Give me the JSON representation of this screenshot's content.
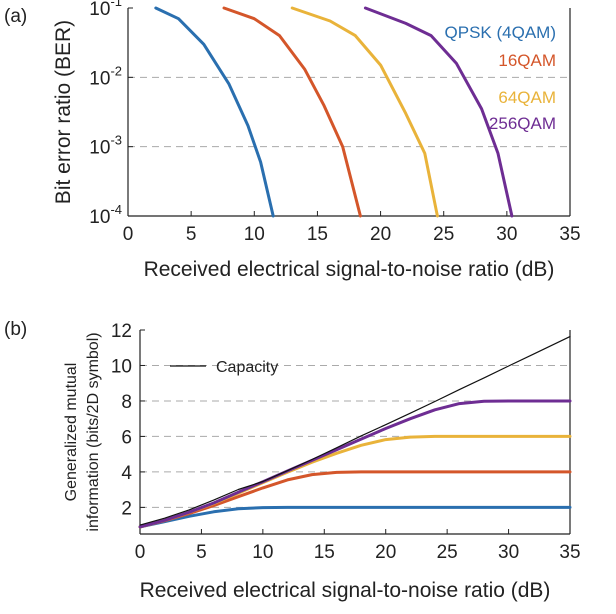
{
  "chart_data": [
    {
      "panel_label": "(a)",
      "type": "line",
      "xlabel": "Received electrical signal-to-noise ratio (dB)",
      "ylabel": "Bit error ratio (BER)",
      "xlim": [
        0,
        35
      ],
      "ylim": [
        0.0001,
        0.1
      ],
      "yscale": "log",
      "xticks": [
        0,
        5,
        10,
        15,
        20,
        25,
        30,
        35
      ],
      "yticks": [
        {
          "base": "10",
          "exp": "-4",
          "value": 0.0001
        },
        {
          "base": "10",
          "exp": "-3",
          "value": 0.001
        },
        {
          "base": "10",
          "exp": "-2",
          "value": 0.01
        },
        {
          "base": "10",
          "exp": "-1",
          "value": 0.1
        }
      ],
      "grid": "horizontal-dashed",
      "series": [
        {
          "name": "QPSK (4QAM)",
          "color": "#2a6faf",
          "x": [
            2.2,
            4,
            6,
            8,
            9.5,
            10.5,
            11.5
          ],
          "y": [
            0.1,
            0.07,
            0.03,
            0.008,
            0.002,
            0.0006,
            0.0001
          ]
        },
        {
          "name": "16QAM",
          "color": "#d4562a",
          "x": [
            7.6,
            10,
            12,
            14,
            15.5,
            17,
            18.4
          ],
          "y": [
            0.1,
            0.07,
            0.04,
            0.013,
            0.004,
            0.001,
            0.0001
          ]
        },
        {
          "name": "64QAM",
          "color": "#e9b33a",
          "x": [
            13,
            16,
            18,
            20,
            22,
            23.5,
            24.5
          ],
          "y": [
            0.1,
            0.065,
            0.04,
            0.015,
            0.003,
            0.0008,
            0.0001
          ]
        },
        {
          "name": "256QAM",
          "color": "#6e2d93",
          "x": [
            18.8,
            22,
            24,
            26,
            28,
            29.3,
            30.4
          ],
          "y": [
            0.1,
            0.06,
            0.04,
            0.016,
            0.0035,
            0.0008,
            0.0001
          ]
        }
      ]
    },
    {
      "panel_label": "(b)",
      "type": "line",
      "xlabel": "Received electrical signal-to-noise ratio (dB)",
      "ylabel_line1": "Generalized mutual",
      "ylabel_line2": "information (bits/2D symbol)",
      "xlim": [
        0,
        35
      ],
      "ylim": [
        0.5,
        12
      ],
      "xticks": [
        0,
        5,
        10,
        15,
        20,
        25,
        30,
        35
      ],
      "yticks": [
        2,
        4,
        6,
        8,
        10,
        12
      ],
      "grid": "horizontal-dashed",
      "legend": {
        "position": "top-left",
        "entry": "Capacity"
      },
      "series": [
        {
          "name": "Capacity",
          "color": "#111111",
          "x": [
            0,
            2,
            4,
            6,
            8,
            10,
            12,
            14,
            16,
            18,
            20,
            22,
            24,
            26,
            28,
            30,
            32,
            35
          ],
          "y": [
            1,
            1.39,
            1.86,
            2.41,
            3.01,
            3.46,
            4.07,
            4.7,
            5.36,
            6.03,
            6.66,
            7.31,
            7.97,
            8.64,
            9.3,
            9.97,
            10.63,
            11.63
          ]
        },
        {
          "name": "QPSK (4QAM)",
          "color": "#2a6faf",
          "x": [
            0,
            2,
            4,
            6,
            8,
            10,
            12,
            14,
            35
          ],
          "y": [
            0.9,
            1.2,
            1.5,
            1.75,
            1.92,
            1.99,
            2.0,
            2.0,
            2.0
          ]
        },
        {
          "name": "16QAM",
          "color": "#d4562a",
          "x": [
            0,
            2,
            4,
            6,
            8,
            10,
            12,
            14,
            16,
            18,
            20,
            35
          ],
          "y": [
            0.9,
            1.25,
            1.65,
            2.1,
            2.6,
            3.1,
            3.55,
            3.85,
            3.97,
            4.0,
            4.0,
            4.0
          ]
        },
        {
          "name": "64QAM",
          "color": "#e9b33a",
          "x": [
            0,
            2,
            4,
            6,
            8,
            10,
            12,
            14,
            16,
            18,
            20,
            22,
            24,
            26,
            35
          ],
          "y": [
            0.9,
            1.27,
            1.72,
            2.22,
            2.8,
            3.4,
            3.98,
            4.55,
            5.05,
            5.5,
            5.82,
            5.96,
            6.0,
            6.0,
            6.0
          ]
        },
        {
          "name": "256QAM",
          "color": "#6e2d93",
          "x": [
            0,
            2,
            4,
            6,
            8,
            10,
            12,
            14,
            16,
            18,
            20,
            22,
            24,
            26,
            28,
            30,
            35
          ],
          "y": [
            0.9,
            1.27,
            1.73,
            2.25,
            2.85,
            3.45,
            4.05,
            4.65,
            5.25,
            5.85,
            6.45,
            7.0,
            7.5,
            7.85,
            7.98,
            8.0,
            8.0
          ]
        }
      ]
    }
  ]
}
